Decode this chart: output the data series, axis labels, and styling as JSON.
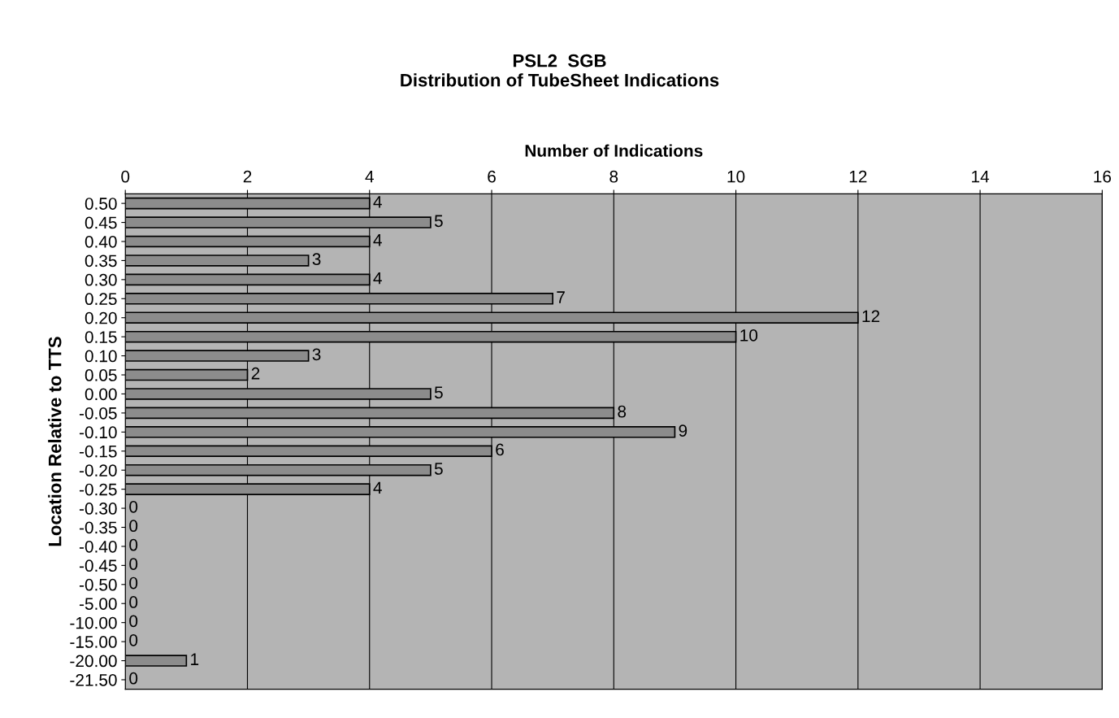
{
  "chart_data": {
    "type": "bar",
    "orientation": "horizontal",
    "title": "PSL2  SGB\nDistribution of TubeSheet Indications",
    "xlabel": "Number of Indications",
    "ylabel": "Location Relative to TTS",
    "categories": [
      "0.50",
      "0.45",
      "0.40",
      "0.35",
      "0.30",
      "0.25",
      "0.20",
      "0.15",
      "0.10",
      "0.05",
      "0.00",
      "-0.05",
      "-0.10",
      "-0.15",
      "-0.20",
      "-0.25",
      "-0.30",
      "-0.35",
      "-0.40",
      "-0.45",
      "-0.50",
      "-5.00",
      "-10.00",
      "-15.00",
      "-20.00",
      "-21.50"
    ],
    "values": [
      4,
      5,
      4,
      3,
      4,
      7,
      12,
      10,
      3,
      2,
      5,
      8,
      9,
      6,
      5,
      4,
      0,
      0,
      0,
      0,
      0,
      0,
      0,
      0,
      1,
      0
    ],
    "color": "#8c8c8c",
    "xlim": [
      0,
      16
    ],
    "xticks": [
      0,
      2,
      4,
      6,
      8,
      10,
      12,
      14,
      16
    ],
    "grid": "x",
    "data_labels": true
  }
}
